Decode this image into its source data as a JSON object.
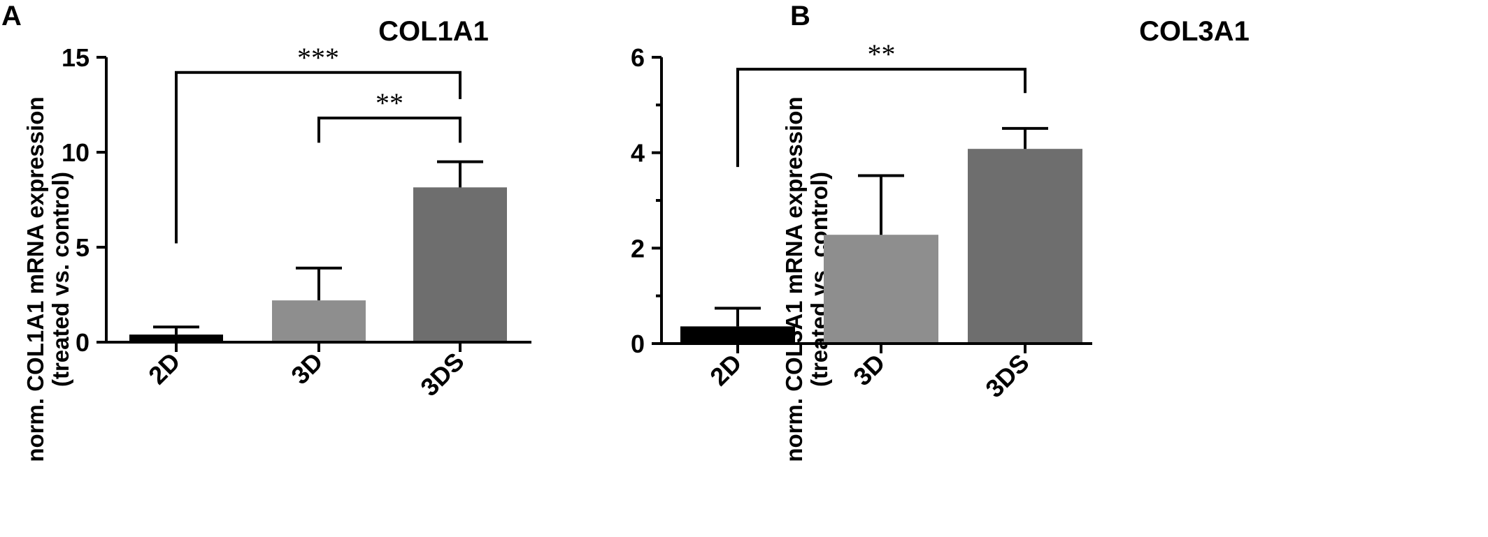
{
  "chart_data": [
    {
      "panel": "A",
      "type": "bar",
      "title": "COL1A1",
      "ylabel": [
        "norm. COL1A1 mRNA expression",
        "(treated vs. control)"
      ],
      "categories": [
        "2D",
        "3D",
        "3DS"
      ],
      "values": [
        0.4,
        2.2,
        8.15
      ],
      "errors": [
        0.4,
        1.7,
        1.35
      ],
      "colors": [
        "#000000",
        "#8e8e8e",
        "#6e6e6e"
      ],
      "ylim": [
        0,
        15
      ],
      "yticks": [
        0,
        5,
        10,
        15
      ],
      "ytick_labels": [
        "0",
        "5",
        "10",
        "15"
      ],
      "significance": [
        {
          "from": "2D",
          "to": "3DS",
          "label": "***",
          "y": 14.2,
          "left_end": 5.2,
          "right_end": 12.8
        },
        {
          "from": "3D",
          "to": "3DS",
          "label": "**",
          "y": 11.8,
          "left_end": 10.5,
          "right_end": 10.5
        }
      ]
    },
    {
      "panel": "B",
      "type": "bar",
      "title": "COL3A1",
      "ylabel": [
        "norm. COL3A1 mRNA expression",
        "(treated vs. control)"
      ],
      "categories": [
        "2D",
        "3D",
        "3DS"
      ],
      "values": [
        0.36,
        2.28,
        4.08
      ],
      "errors": [
        0.38,
        1.24,
        0.43
      ],
      "colors": [
        "#000000",
        "#8e8e8e",
        "#6e6e6e"
      ],
      "ylim": [
        0,
        6
      ],
      "yticks": [
        0,
        2,
        4,
        6
      ],
      "minor_yticks": [
        1,
        3,
        5
      ],
      "ytick_labels": [
        "0",
        "2",
        "4",
        "6"
      ],
      "significance": [
        {
          "from": "2D",
          "to": "3DS",
          "label": "**",
          "y": 5.75,
          "left_end": 3.7,
          "right_end": 5.25
        }
      ]
    }
  ]
}
